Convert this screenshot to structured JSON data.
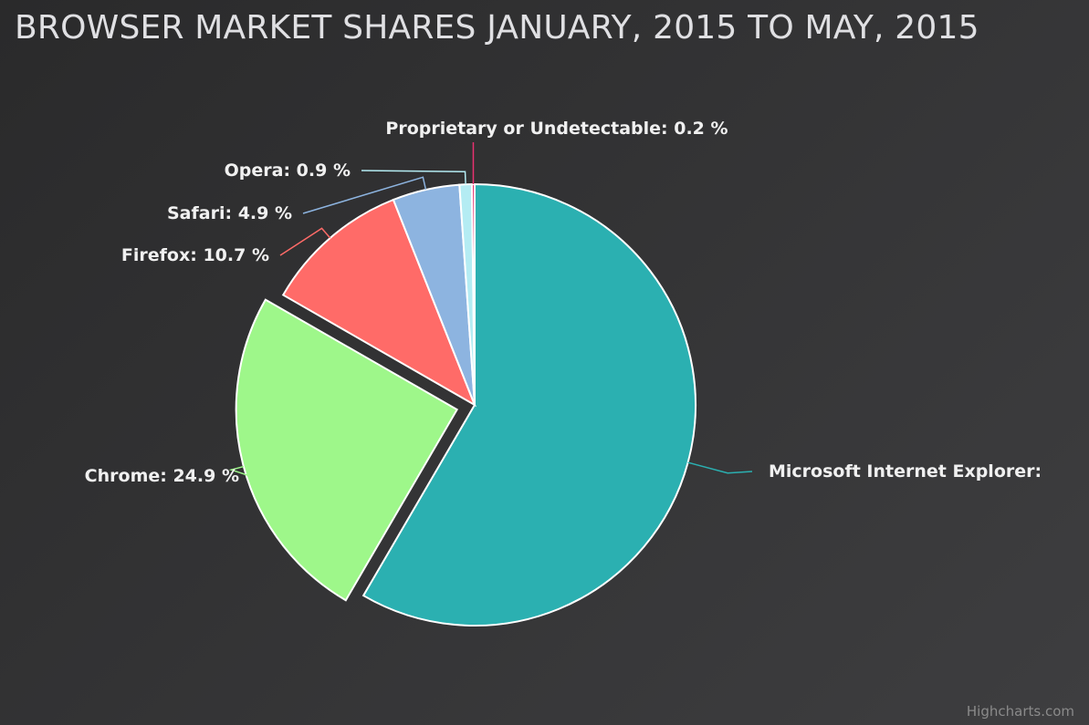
{
  "chart_data": {
    "type": "pie",
    "title": "BROWSER MARKET SHARES JANUARY, 2015 TO MAY, 2015",
    "unit": "%",
    "slices": [
      {
        "name": "Microsoft Internet Explorer",
        "value": 58.4,
        "color": "#2bb0b1",
        "label": "Microsoft Internet Explorer:",
        "exploded": false
      },
      {
        "name": "Chrome",
        "value": 24.9,
        "color": "#9ef78a",
        "label": "Chrome: 24.9 %",
        "exploded": true
      },
      {
        "name": "Firefox",
        "value": 10.7,
        "color": "#ff6b68",
        "label": "Firefox: 10.7 %",
        "exploded": false
      },
      {
        "name": "Safari",
        "value": 4.9,
        "color": "#8db4e0",
        "label": "Safari: 4.9 %",
        "exploded": false
      },
      {
        "name": "Opera",
        "value": 0.9,
        "color": "#b4ecf3",
        "label": "Opera: 0.9 %",
        "exploded": false
      },
      {
        "name": "Proprietary or Undetectable",
        "value": 0.2,
        "color": "#e8316f",
        "label": "Proprietary or Undetectable: 0.2 %",
        "exploded": false
      }
    ],
    "legend": "none"
  },
  "credit": "Highcharts.com"
}
